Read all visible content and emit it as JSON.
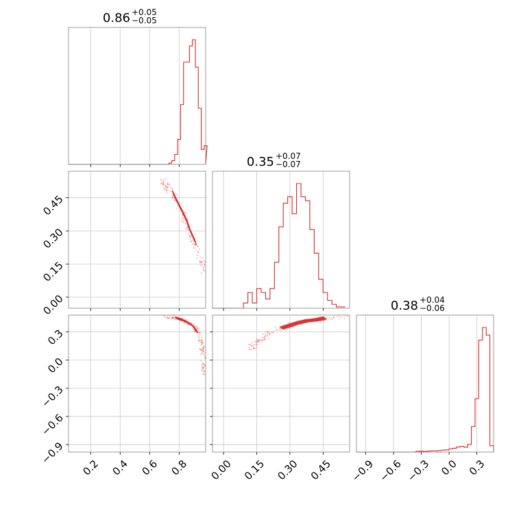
{
  "chart_data": {
    "type": "corner",
    "color": "#d62728",
    "grid": true,
    "parameters": [
      {
        "title": {
          "median": "0.86",
          "upper": "+0.05",
          "lower": "−0.05"
        },
        "xlim": [
          0.05,
          0.98
        ],
        "ticks": [
          0.2,
          0.4,
          0.6,
          0.8
        ],
        "tick_labels": [
          "0.2",
          "0.4",
          "0.6",
          "0.8"
        ],
        "hist": {
          "bins": [
            0.05,
            0.07,
            0.09,
            0.11,
            0.13,
            0.15,
            0.17,
            0.19,
            0.21,
            0.23,
            0.25,
            0.27,
            0.29,
            0.31,
            0.33,
            0.35,
            0.37,
            0.39,
            0.41,
            0.43,
            0.45,
            0.47,
            0.49,
            0.51,
            0.53,
            0.55,
            0.57,
            0.59,
            0.61,
            0.63,
            0.65,
            0.67,
            0.69,
            0.71,
            0.73,
            0.75,
            0.77,
            0.79,
            0.81,
            0.83,
            0.85,
            0.87,
            0.89,
            0.91,
            0.93,
            0.95,
            0.97
          ],
          "counts": [
            0,
            0,
            0,
            0,
            0,
            0,
            0,
            0,
            0,
            0,
            0,
            0,
            0,
            0,
            0,
            0,
            0,
            0,
            0,
            0,
            0,
            0,
            0,
            0,
            0,
            0,
            0,
            0,
            0,
            0,
            0,
            0,
            0,
            0,
            0.01,
            0.03,
            0.08,
            0.2,
            0.48,
            0.82,
            0.82,
            0.95,
            1.0,
            0.78,
            0.45,
            0.12,
            0.15
          ]
        }
      },
      {
        "title": {
          "median": "0.35",
          "upper": "+0.07",
          "lower": "−0.07"
        },
        "xlim": [
          -0.05,
          0.57
        ],
        "ticks": [
          0.0,
          0.15,
          0.3,
          0.45
        ],
        "tick_labels": [
          "0.00",
          "0.15",
          "0.30",
          "0.45"
        ],
        "hist": {
          "bins": [
            -0.05,
            -0.03,
            -0.01,
            0.01,
            0.03,
            0.05,
            0.07,
            0.09,
            0.11,
            0.13,
            0.15,
            0.17,
            0.19,
            0.21,
            0.23,
            0.25,
            0.27,
            0.29,
            0.31,
            0.33,
            0.35,
            0.37,
            0.39,
            0.41,
            0.43,
            0.45,
            0.47,
            0.49,
            0.51,
            0.53,
            0.55
          ],
          "counts": [
            0,
            0,
            0,
            0,
            0,
            0,
            0,
            0.04,
            0.12,
            0.04,
            0.15,
            0.12,
            0.07,
            0.15,
            0.35,
            0.62,
            0.8,
            0.85,
            0.72,
            0.95,
            0.85,
            0.82,
            0.6,
            0.42,
            0.22,
            0.12,
            0.06,
            0.03,
            0.01,
            0.01
          ]
        }
      },
      {
        "title": {
          "median": "0.38",
          "upper": "+0.04",
          "lower": "−0.06"
        },
        "xlim": [
          -1.0,
          0.48
        ],
        "ticks": [
          -0.9,
          -0.6,
          -0.3,
          0.0,
          0.3
        ],
        "tick_labels": [
          "−0.9",
          "−0.6",
          "−0.3",
          "0.0",
          "0.3"
        ],
        "hist": {
          "bins": [
            -1.0,
            -0.96,
            -0.92,
            -0.88,
            -0.84,
            -0.8,
            -0.76,
            -0.72,
            -0.68,
            -0.64,
            -0.6,
            -0.56,
            -0.52,
            -0.48,
            -0.44,
            -0.4,
            -0.36,
            -0.32,
            -0.28,
            -0.24,
            -0.2,
            -0.16,
            -0.12,
            -0.08,
            -0.04,
            0.0,
            0.04,
            0.08,
            0.12,
            0.16,
            0.2,
            0.24,
            0.28,
            0.32,
            0.36,
            0.4,
            0.44
          ],
          "counts": [
            0,
            0,
            0,
            0,
            0,
            0,
            0,
            0,
            0,
            0,
            0,
            0,
            0,
            0,
            0,
            0,
            0.005,
            0.008,
            0.005,
            0.008,
            0.01,
            0.01,
            0.012,
            0.015,
            0.018,
            0.025,
            0.03,
            0.04,
            0.045,
            0.038,
            0.06,
            0.2,
            0.42,
            0.88,
            0.98,
            0.92,
            0.05
          ]
        }
      }
    ],
    "y_axes": {
      "row1": {
        "ylim": [
          -0.05,
          0.57
        ],
        "ticks": [
          0.0,
          0.15,
          0.3,
          0.45
        ],
        "tick_labels": [
          "0.00",
          "0.15",
          "0.30",
          "0.45"
        ]
      },
      "row2": {
        "ylim": [
          -0.98,
          0.48
        ],
        "ticks": [
          -0.9,
          -0.6,
          -0.3,
          0.0,
          0.3
        ],
        "tick_labels": [
          "−0.9",
          "−0.6",
          "−0.3",
          "0.0",
          "0.3"
        ]
      }
    },
    "scatter": {
      "p0_p1": {
        "ridge": [
          [
            0.68,
            0.53
          ],
          [
            0.72,
            0.5
          ],
          [
            0.76,
            0.47
          ],
          [
            0.8,
            0.42
          ],
          [
            0.83,
            0.37
          ],
          [
            0.86,
            0.32
          ],
          [
            0.89,
            0.27
          ],
          [
            0.92,
            0.22
          ],
          [
            0.95,
            0.17
          ],
          [
            0.97,
            0.13
          ]
        ],
        "core": [
          [
            0.76,
            0.47
          ],
          [
            0.79,
            0.43
          ],
          [
            0.82,
            0.39
          ],
          [
            0.85,
            0.35
          ],
          [
            0.87,
            0.31
          ],
          [
            0.89,
            0.28
          ],
          [
            0.91,
            0.25
          ]
        ]
      },
      "p0_p2": {
        "ridge": [
          [
            0.7,
            0.47
          ],
          [
            0.75,
            0.46
          ],
          [
            0.8,
            0.44
          ],
          [
            0.85,
            0.41
          ],
          [
            0.89,
            0.37
          ],
          [
            0.92,
            0.32
          ],
          [
            0.94,
            0.26
          ],
          [
            0.95,
            0.18
          ],
          [
            0.96,
            0.08
          ],
          [
            0.97,
            -0.05
          ],
          [
            0.975,
            -0.15
          ]
        ],
        "core": [
          [
            0.78,
            0.45
          ],
          [
            0.82,
            0.43
          ],
          [
            0.86,
            0.4
          ],
          [
            0.89,
            0.37
          ],
          [
            0.91,
            0.33
          ],
          [
            0.92,
            0.3
          ]
        ]
      },
      "p1_p2": {
        "ridge": [
          [
            0.12,
            0.12
          ],
          [
            0.15,
            0.18
          ],
          [
            0.18,
            0.24
          ],
          [
            0.22,
            0.3
          ],
          [
            0.26,
            0.34
          ],
          [
            0.3,
            0.37
          ],
          [
            0.35,
            0.4
          ],
          [
            0.4,
            0.42
          ],
          [
            0.45,
            0.44
          ],
          [
            0.5,
            0.46
          ],
          [
            0.55,
            0.47
          ]
        ],
        "core": [
          [
            0.26,
            0.34
          ],
          [
            0.3,
            0.37
          ],
          [
            0.34,
            0.4
          ],
          [
            0.38,
            0.42
          ],
          [
            0.42,
            0.43
          ],
          [
            0.46,
            0.45
          ]
        ]
      }
    }
  }
}
